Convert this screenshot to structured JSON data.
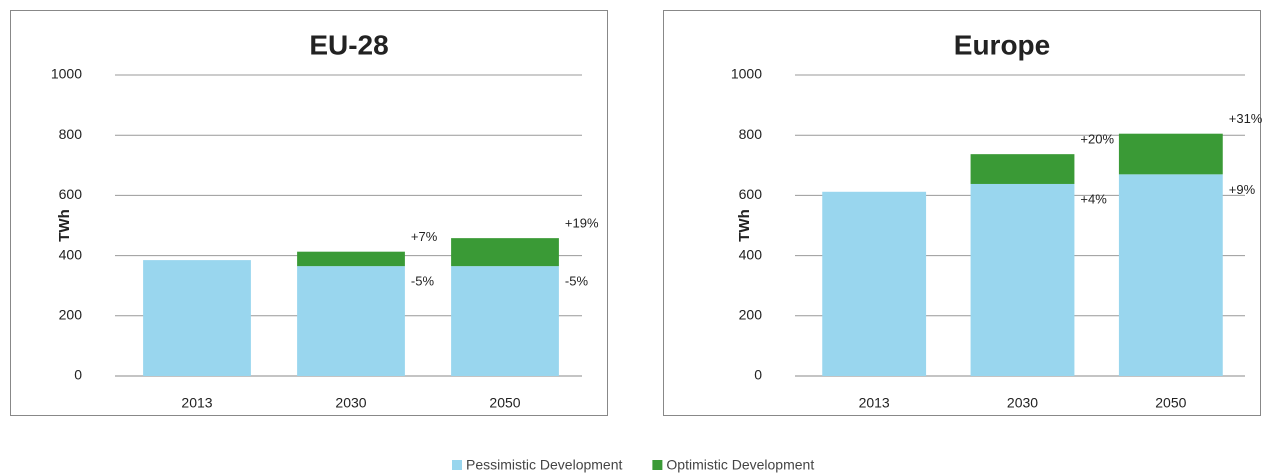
{
  "chart_data": [
    {
      "type": "bar",
      "title": "EU-28",
      "y_label": "TWh",
      "categories": [
        "2013",
        "2030",
        "2050"
      ],
      "series": [
        {
          "name": "Pessimistic Development",
          "color": "#99d6ee",
          "values": [
            385,
            365,
            365
          ],
          "change_labels": [
            null,
            "-5%",
            "-5%"
          ]
        },
        {
          "name": "Optimistic Development",
          "color": "#3a9a36",
          "values": [
            null,
            48,
            93
          ],
          "change_labels": [
            null,
            "+7%",
            "+19%"
          ]
        }
      ],
      "stacked": true,
      "ylim": [
        0,
        1000
      ],
      "yticks": [
        0,
        200,
        400,
        600,
        800,
        1000
      ],
      "grid": true
    },
    {
      "type": "bar",
      "title": "Europe",
      "y_label": "TWh",
      "categories": [
        "2013",
        "2030",
        "2050"
      ],
      "series": [
        {
          "color": "#99d6ee",
          "values": [
            612,
            638,
            670
          ],
          "change_labels": [
            null,
            "+4%",
            "+9%"
          ]
        },
        {
          "color": "#3a9a36",
          "values": [
            null,
            99,
            135
          ],
          "change_labels": [
            null,
            "+20%",
            "+31%"
          ]
        }
      ],
      "stacked": true,
      "ylim": [
        0,
        1000
      ],
      "yticks": [
        0,
        200,
        400,
        600,
        800,
        1000
      ],
      "grid": true
    }
  ]
}
